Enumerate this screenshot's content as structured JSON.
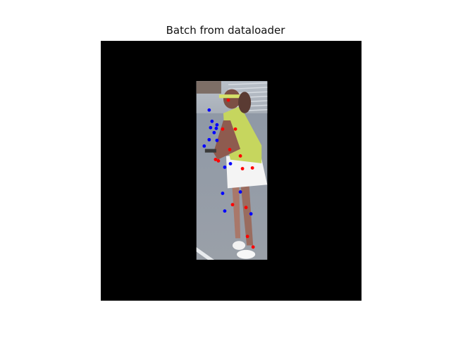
{
  "figure": {
    "title": "Batch from dataloader"
  },
  "chart_data": {
    "type": "scatter",
    "title": "Batch from dataloader",
    "xlabel": "",
    "ylabel": "",
    "xlim": [
      0,
      368
    ],
    "ylim": [
      368,
      0
    ],
    "axes_visible": false,
    "grid": false,
    "background": "#000000",
    "photo": {
      "x": [
        135,
        235
      ],
      "y": [
        57,
        310
      ],
      "subject": "tennis player in yellow top and white skirt"
    },
    "series": [
      {
        "color": "#ff0000",
        "x": [
          180,
          172,
          190,
          182,
          197,
          162,
          166,
          200,
          214,
          186,
          205,
          207,
          215
        ],
        "y": [
          84,
          125,
          125,
          154,
          163,
          168,
          170,
          181,
          180,
          232,
          236,
          277,
          292
        ]
      },
      {
        "color": "#0000ff",
        "x": [
          153,
          157,
          164,
          155,
          163,
          160,
          153,
          164,
          146,
          175,
          183,
          172,
          197,
          175,
          212
        ],
        "y": [
          98,
          114,
          119,
          123,
          124,
          130,
          140,
          141,
          149,
          179,
          174,
          216,
          214,
          241,
          245
        ]
      }
    ]
  }
}
